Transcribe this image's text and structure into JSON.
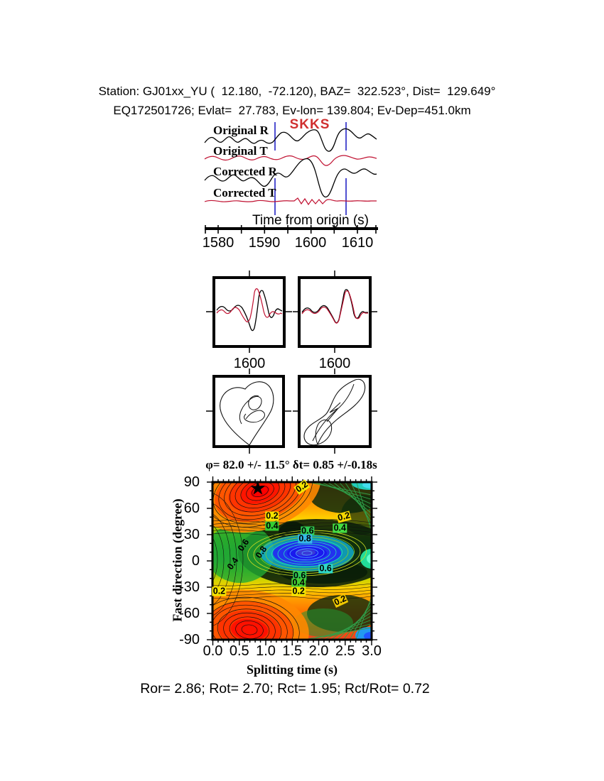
{
  "header": {
    "line1": "Station: GJ01xx_YU (  12.180,  -72.120), BAZ=  322.523°, Dist=  129.649°",
    "line2": "EQ172501726; Evlat=  27.783, Ev-lon= 139.804; Ev-Dep=451.0km"
  },
  "waveform_section": {
    "phase_label": "SKKS",
    "trace_labels": [
      "Original R",
      "Original T",
      "Corrected R",
      "Corrected T"
    ],
    "axis_label": "Time from origin (s)",
    "tick_labels": [
      "1580",
      "1590",
      "1600",
      "1610"
    ]
  },
  "wave_panels": {
    "left_label": "1600",
    "right_label": "1600"
  },
  "icons": {
    "best_fit_star": "★"
  },
  "chart_data": {
    "type": "heatmap",
    "title": "φ= 82.0 +/- 11.5° δt= 0.85 +/-0.18s",
    "xlabel": "Splitting time (s)",
    "ylabel": "Fast direction (degree)",
    "xlim": [
      0.0,
      3.0
    ],
    "ylim": [
      -90,
      90
    ],
    "xtick_labels": [
      "0.0",
      "0.5",
      "1.0",
      "1.5",
      "2.0",
      "2.5",
      "3.0"
    ],
    "ytick_labels": [
      "90",
      "60",
      "30",
      "0",
      "-30",
      "-60",
      "-90"
    ],
    "grid": false,
    "legend": false,
    "best_fit": {
      "phi_deg": 82.0,
      "phi_err_deg": 11.5,
      "dt_s": 0.85,
      "dt_err_s": 0.18
    },
    "star": {
      "t": 0.85,
      "phi": 82.0
    },
    "contour_levels": [
      0.2,
      0.4,
      0.6,
      0.8
    ],
    "palette": [
      "#ff2200",
      "#ff8800",
      "#ffd500",
      "#55bb11",
      "#1f9933",
      "#22ddbb",
      "#2233ee"
    ],
    "features": {
      "maxima_red": [
        {
          "t": 0.87,
          "phi": 82
        },
        {
          "t": 0.7,
          "phi": -76
        }
      ],
      "minimum_blue": {
        "t": 1.78,
        "phi": 9
      }
    },
    "contour_labels": [
      {
        "text": "0.2",
        "t": 1.12,
        "phi": 51,
        "bg": "#f5e400",
        "rot": 0
      },
      {
        "text": "0.4",
        "t": 1.12,
        "phi": 40,
        "bg": "#33cc33",
        "rot": 0
      },
      {
        "text": "0.2",
        "t": 1.68,
        "phi": 84,
        "bg": "#f5e400",
        "rot": -35
      },
      {
        "text": "0.2",
        "t": 2.47,
        "phi": 50,
        "bg": "#f5d800",
        "rot": -15
      },
      {
        "text": "0.4",
        "t": 2.4,
        "phi": 37,
        "bg": "#44dd44",
        "rot": 0
      },
      {
        "text": "0.6",
        "t": 1.79,
        "phi": 34,
        "bg": "#2fcc55",
        "rot": 0
      },
      {
        "text": "0.8",
        "t": 1.74,
        "phi": 25,
        "bg": "#35b8e8",
        "rot": 0
      },
      {
        "text": "0.6",
        "t": 2.13,
        "phi": -9,
        "bg": "#2fd8c8",
        "rot": 0
      },
      {
        "text": "0.6",
        "t": 1.64,
        "phi": -17,
        "bg": "#2fcc55",
        "rot": 0
      },
      {
        "text": "0.4",
        "t": 1.62,
        "phi": -25,
        "bg": "#44cc33",
        "rot": 0
      },
      {
        "text": "0.2",
        "t": 1.62,
        "phi": -35,
        "bg": "#f5e400",
        "rot": 0
      },
      {
        "text": "0.2",
        "t": 0.12,
        "phi": -35,
        "bg": "#f5e400",
        "rot": 0
      },
      {
        "text": "0.2",
        "t": 2.41,
        "phi": -45,
        "bg": "#f0c800",
        "rot": -25
      },
      {
        "text": "0.6",
        "t": 0.59,
        "phi": 18,
        "bg": "",
        "rot": -55
      },
      {
        "text": "0.8",
        "t": 0.92,
        "phi": 10,
        "bg": "",
        "rot": -55
      },
      {
        "text": "0.4",
        "t": 0.38,
        "phi": -3,
        "bg": "",
        "rot": -55
      }
    ]
  },
  "footer": {
    "stats": "Ror= 2.86; Rot= 2.70; Rct= 1.95; Rct/Rot= 0.72"
  }
}
